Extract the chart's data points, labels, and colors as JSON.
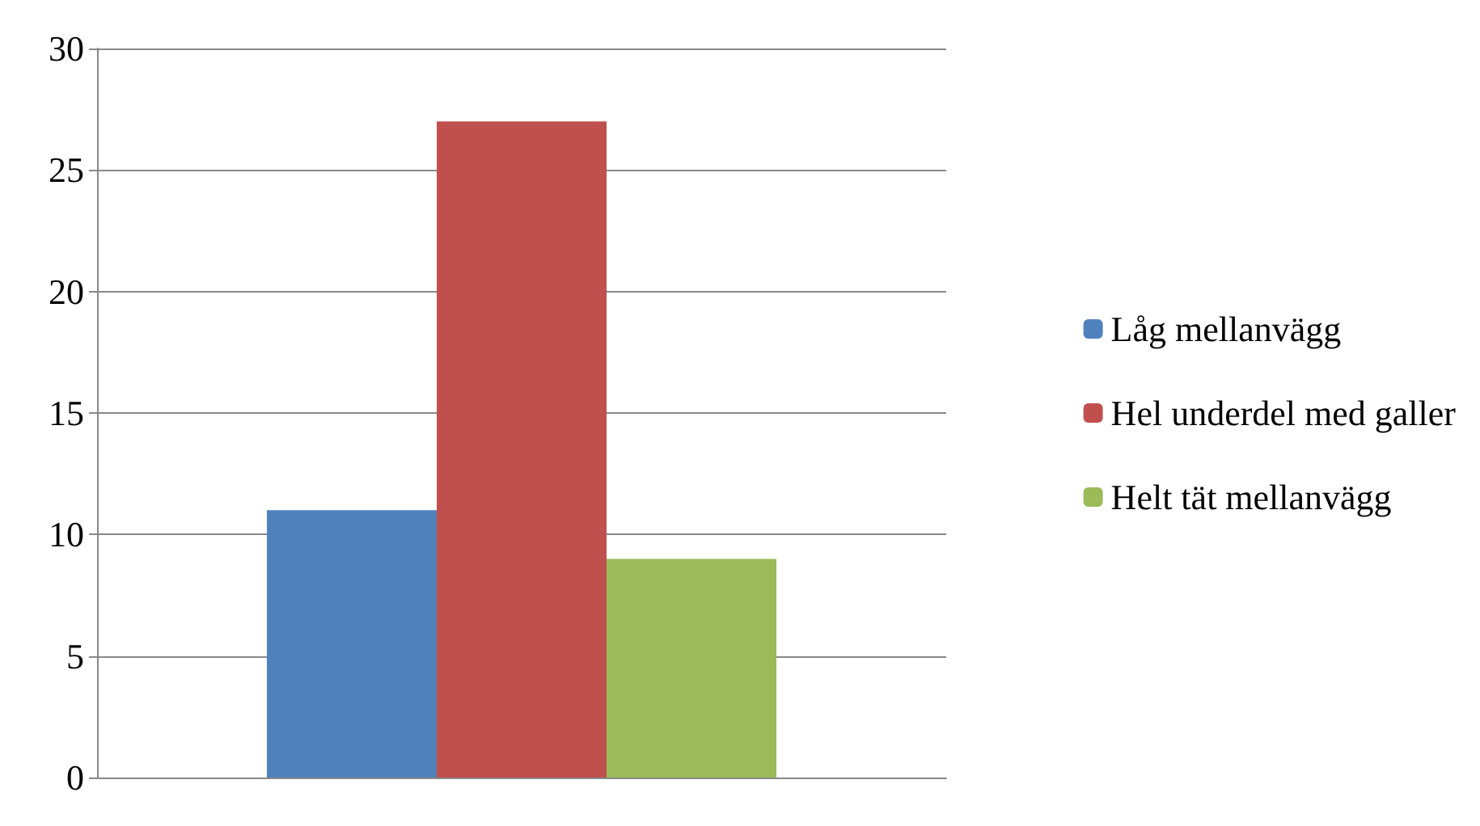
{
  "chart_data": {
    "type": "bar",
    "categories": [
      null
    ],
    "series": [
      {
        "name": "Låg mellanvägg",
        "color": "#4f81bd",
        "values": [
          11
        ]
      },
      {
        "name": "Hel underdel med galler",
        "color": "#c0504d",
        "values": [
          27
        ]
      },
      {
        "name": "Helt tät mellanvägg",
        "color": "#9bbb59",
        "values": [
          9
        ]
      }
    ],
    "ylim": [
      0,
      30
    ],
    "yticks": [
      0,
      5,
      10,
      15,
      20,
      25,
      30
    ],
    "grid": "y",
    "legend": "right"
  }
}
